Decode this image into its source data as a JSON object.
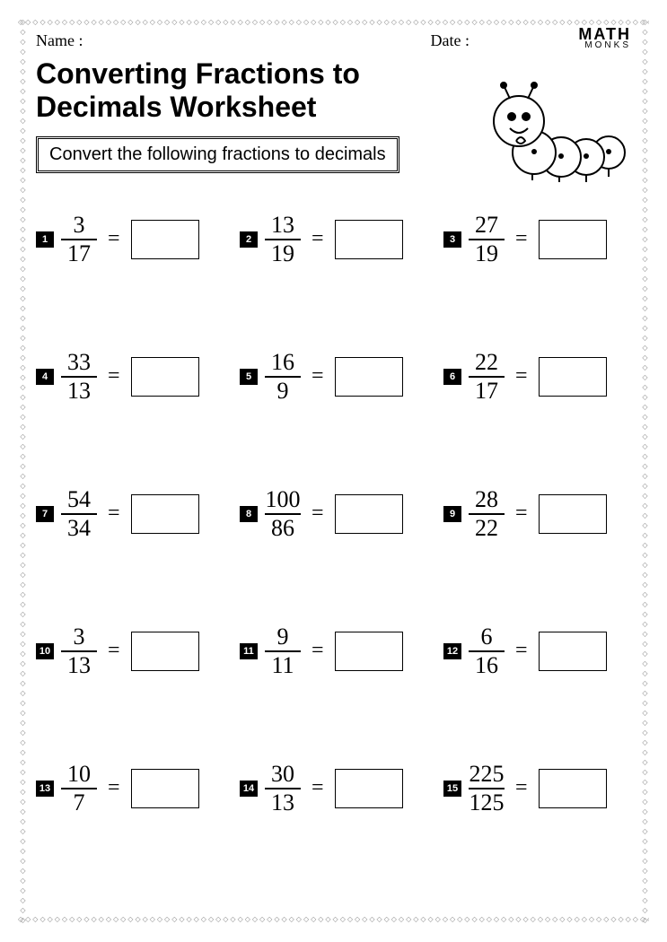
{
  "header": {
    "name_label": "Name :",
    "date_label": "Date :",
    "logo_top": "MATH",
    "logo_bottom": "MONKS"
  },
  "title_line1": "Converting Fractions to",
  "title_line2": "Decimals Worksheet",
  "instruction": "Convert the following fractions to decimals",
  "problems": [
    {
      "n": "1",
      "numer": "3",
      "denom": "17"
    },
    {
      "n": "2",
      "numer": "13",
      "denom": "19"
    },
    {
      "n": "3",
      "numer": "27",
      "denom": "19"
    },
    {
      "n": "4",
      "numer": "33",
      "denom": "13"
    },
    {
      "n": "5",
      "numer": "16",
      "denom": "9"
    },
    {
      "n": "6",
      "numer": "22",
      "denom": "17"
    },
    {
      "n": "7",
      "numer": "54",
      "denom": "34"
    },
    {
      "n": "8",
      "numer": "100",
      "denom": "86"
    },
    {
      "n": "9",
      "numer": "28",
      "denom": "22"
    },
    {
      "n": "10",
      "numer": "3",
      "denom": "13"
    },
    {
      "n": "11",
      "numer": "9",
      "denom": "11"
    },
    {
      "n": "12",
      "numer": "6",
      "denom": "16"
    },
    {
      "n": "13",
      "numer": "10",
      "denom": "7"
    },
    {
      "n": "14",
      "numer": "30",
      "denom": "13"
    },
    {
      "n": "15",
      "numer": "225",
      "denom": "125"
    }
  ],
  "style": {
    "page_bg": "#ffffff",
    "text_color": "#000000",
    "border_diamond_color": "#888888",
    "badge_bg": "#000000",
    "badge_fg": "#ffffff",
    "title_fontsize": 32,
    "instruction_fontsize": 20,
    "fraction_fontsize": 26,
    "answer_box_w": 76,
    "answer_box_h": 44,
    "grid_cols": 3,
    "grid_row_gap": 95,
    "grid_col_gap": 18
  }
}
